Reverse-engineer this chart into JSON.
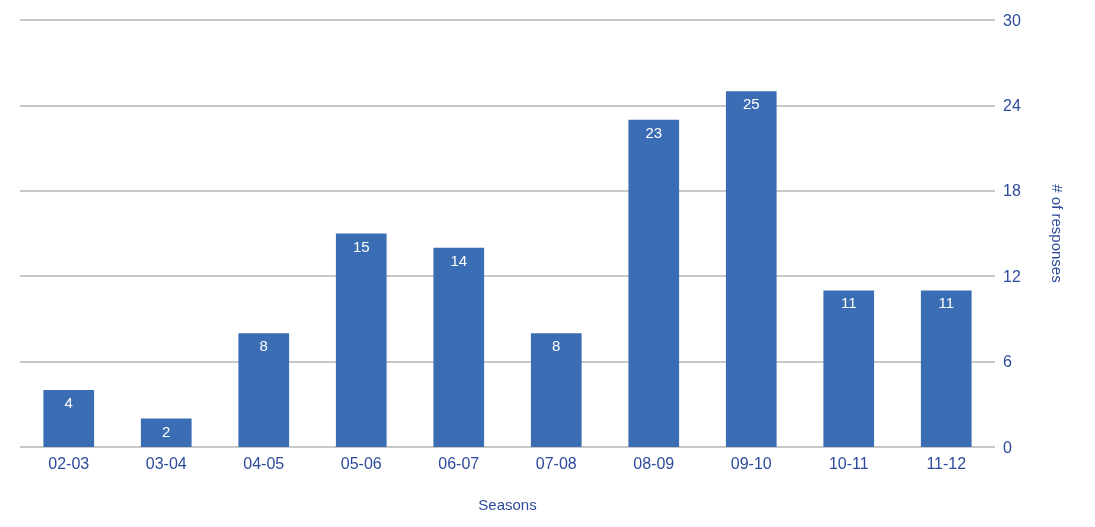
{
  "chart_data": {
    "type": "bar",
    "xlabel": "Seasons",
    "ylabel": "# of responses",
    "categories": [
      "02-03",
      "03-04",
      "04-05",
      "05-06",
      "06-07",
      "07-08",
      "08-09",
      "09-10",
      "10-11",
      "11-12"
    ],
    "values": [
      4,
      2,
      8,
      15,
      14,
      8,
      23,
      25,
      11,
      11
    ],
    "color": "#3a6db3",
    "ylim": [
      0,
      30
    ],
    "yticks": [
      0,
      6,
      12,
      18,
      24,
      30
    ],
    "grid": "y",
    "data_labels": true
  }
}
